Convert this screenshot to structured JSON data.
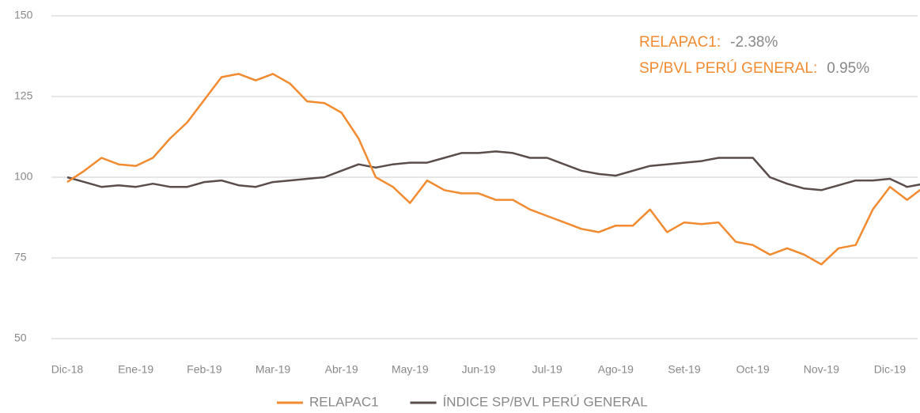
{
  "chart_data": {
    "type": "line",
    "categories": [
      "Dic-18",
      null,
      null,
      null,
      "Ene-19",
      null,
      null,
      null,
      "Feb-19",
      null,
      null,
      null,
      "Mar-19",
      null,
      null,
      null,
      "Abr-19",
      null,
      null,
      null,
      "May-19",
      null,
      null,
      null,
      "Jun-19",
      null,
      null,
      null,
      "Jul-19",
      null,
      null,
      null,
      "Ago-19",
      null,
      null,
      null,
      "Set-19",
      null,
      null,
      null,
      "Oct-19",
      null,
      null,
      null,
      "Nov-19",
      null,
      null,
      null,
      "Dic-19",
      null,
      null
    ],
    "series": [
      {
        "name": "RELAPAC1",
        "color": "#f28a30",
        "values": [
          98.5,
          102,
          106,
          104,
          103.5,
          106,
          112,
          117,
          124,
          131,
          132,
          130,
          132,
          129,
          123.5,
          123,
          120,
          112,
          100,
          97,
          92,
          99,
          96,
          95,
          95,
          93,
          93,
          90,
          88,
          86,
          84,
          83,
          85,
          85,
          90,
          83,
          86,
          85.5,
          86,
          80,
          79,
          76,
          78,
          76,
          73,
          78,
          79,
          90,
          97,
          93,
          97
        ]
      },
      {
        "name": "ÍNDICE SP/BVL PERÚ GENERAL",
        "color": "#5a4d4a",
        "values": [
          100,
          98.5,
          97,
          97.5,
          97,
          98,
          97,
          97,
          98.5,
          99,
          97.5,
          97,
          98.5,
          99,
          99.5,
          100,
          102,
          104,
          103,
          104,
          104.5,
          104.5,
          106,
          107.5,
          107.5,
          108,
          107.5,
          106,
          106,
          104,
          102,
          101,
          100.5,
          102,
          103.5,
          104,
          104.5,
          105,
          106,
          106,
          106,
          100,
          98,
          96.5,
          96,
          97.5,
          99,
          99,
          99.5,
          97,
          98
        ]
      }
    ],
    "annotations": [
      {
        "label": "RELAPAC1:",
        "value": "-2.38%"
      },
      {
        "label": "SP/BVL PERÚ GENERAL:",
        "value": "0.95%"
      }
    ],
    "ylim": [
      50,
      150
    ],
    "yticks": [
      50,
      75,
      100,
      125,
      150
    ],
    "grid": true
  }
}
